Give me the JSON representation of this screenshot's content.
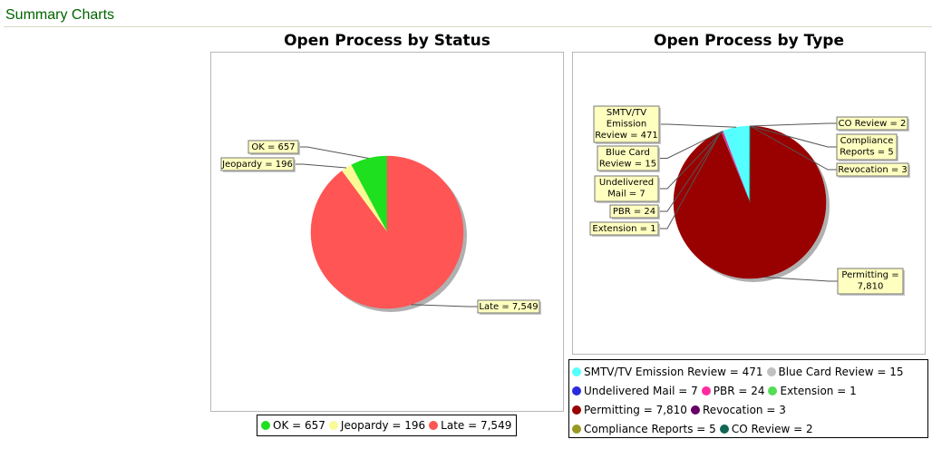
{
  "section": {
    "title": "Summary Charts"
  },
  "chart_data": [
    {
      "type": "pie",
      "title": "Open Process by Status",
      "slices": [
        {
          "label": "OK",
          "value": 657,
          "display": "657",
          "color": "#1ee01e"
        },
        {
          "label": "Jeopardy",
          "value": 196,
          "display": "196",
          "color": "#fafa96"
        },
        {
          "label": "Late",
          "value": 7549,
          "display": "7,549",
          "color": "#ff5555"
        }
      ],
      "slice_labels": [
        "OK = 657",
        "Jeopardy = 196",
        "Late = 7,549"
      ],
      "legend": {
        "placement": "bottom",
        "rows": [
          [
            0,
            1,
            2
          ]
        ],
        "entries": [
          "OK = 657",
          "Jeopardy = 196",
          "Late = 7,549"
        ]
      }
    },
    {
      "type": "pie",
      "title": "Open Process by Type",
      "slices": [
        {
          "label": "SMTV/TV Emission Review",
          "value": 471,
          "display": "471",
          "color": "#55ffff"
        },
        {
          "label": "Blue Card Review",
          "value": 15,
          "display": "15",
          "color": "#c0c0c0"
        },
        {
          "label": "Undelivered Mail",
          "value": 7,
          "display": "7",
          "color": "#2a2ae0"
        },
        {
          "label": "PBR",
          "value": 24,
          "display": "24",
          "color": "#ff2aa0"
        },
        {
          "label": "Extension",
          "value": 1,
          "display": "1",
          "color": "#55dd55"
        },
        {
          "label": "Permitting",
          "value": 7810,
          "display": "7,810",
          "color": "#990000"
        },
        {
          "label": "Revocation",
          "value": 3,
          "display": "3",
          "color": "#660066"
        },
        {
          "label": "Compliance Reports",
          "value": 5,
          "display": "5",
          "color": "#999922"
        },
        {
          "label": "CO Review",
          "value": 2,
          "display": "2",
          "color": "#116655"
        }
      ],
      "slice_labels": [
        [
          "SMTV/TV",
          "Emission",
          "Review = 471"
        ],
        [
          "Blue Card",
          "Review = 15"
        ],
        [
          "Undelivered",
          "Mail = 7"
        ],
        [
          "PBR = 24"
        ],
        [
          "Extension = 1"
        ],
        [
          "Permitting =",
          "7,810"
        ],
        [
          "Revocation = 3"
        ],
        [
          "Compliance",
          "Reports = 5"
        ],
        [
          "CO Review = 2"
        ]
      ],
      "legend": {
        "placement": "bottom",
        "rows": [
          [
            0,
            1
          ],
          [
            2,
            3,
            4
          ],
          [
            5,
            6
          ],
          [
            7,
            8
          ]
        ],
        "entries": [
          "SMTV/TV Emission Review = 471",
          "Blue Card Review = 15",
          "Undelivered Mail = 7",
          "PBR = 24",
          "Extension = 1",
          "Permitting = 7,810",
          "Revocation = 3",
          "Compliance Reports = 5",
          "CO Review = 2"
        ]
      }
    }
  ]
}
